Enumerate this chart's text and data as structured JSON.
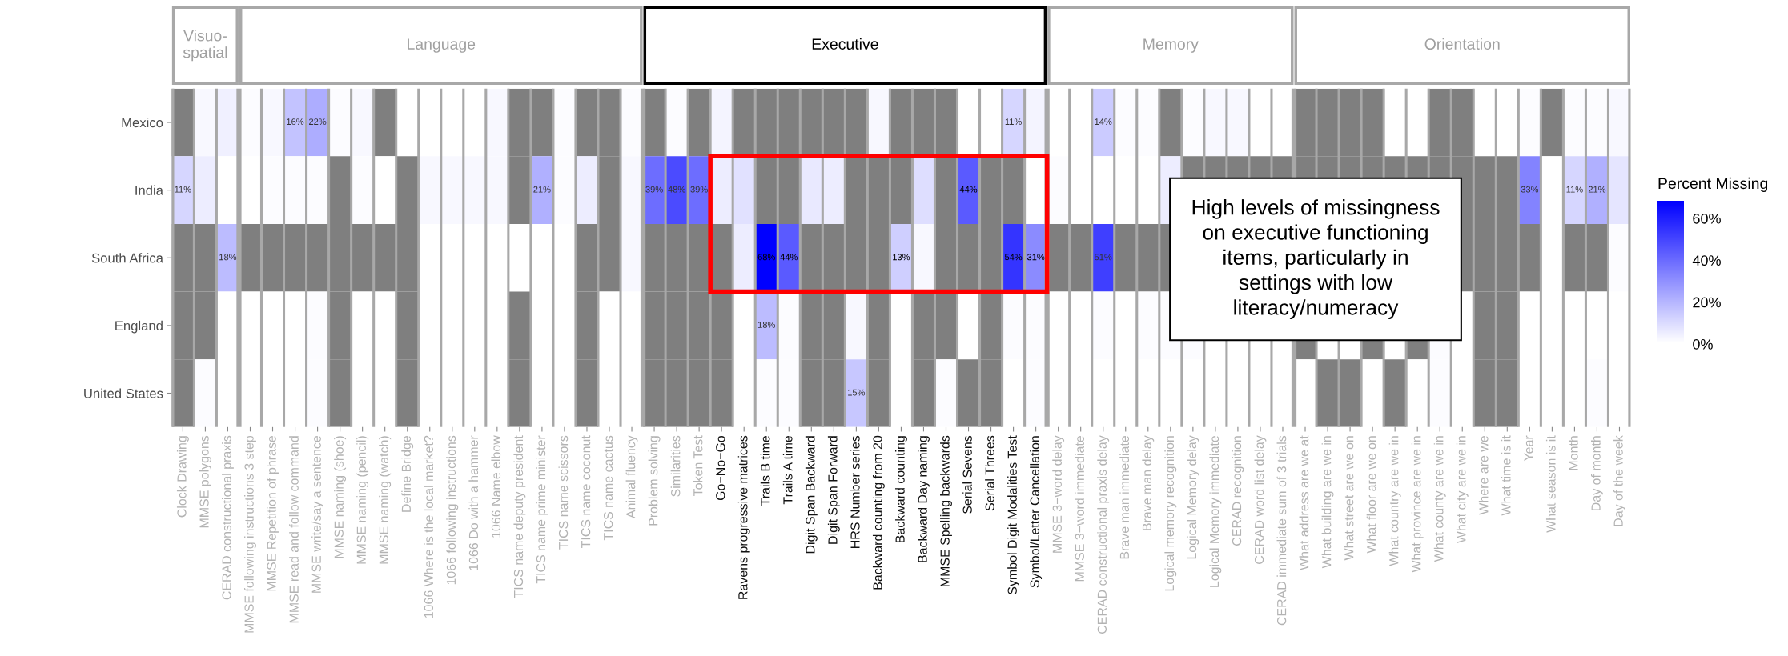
{
  "chart_data": {
    "type": "heatmap",
    "categories": [
      "Clock Drawing",
      "MMSE polygons",
      "CERAD constructional praxis",
      "MMSE following instructions 3 step",
      "MMSE Repetition of phrase",
      "MMSE read and follow command",
      "MMSE write/say a sentence",
      "MMSE naming (shoe)",
      "MMSE naming (pencil)",
      "MMSE naming (watch)",
      "Define Bridge",
      "1066 Where is the local market?",
      "1066 following instructions",
      "1066 Do with a hammer",
      "1066 Name elbow",
      "TICS name deputy president",
      "TICS name prime minister",
      "TICS name scissors",
      "TICS name coconut",
      "TICS name cactus",
      "Animal fluency",
      "Problem solving",
      "Similarities",
      "Token Test",
      "Go−No−Go",
      "Ravens progressive matrices",
      "Trails B time",
      "Trails A time",
      "Digit Span Backward",
      "Digit Span Forward",
      "HRS Number series",
      "Backward counting from 20",
      "Backward counting",
      "Backward Day naming",
      "MMSE Spelling backwards",
      "Serial Sevens",
      "Serial Threes",
      "Symbol Digit Modalities Test",
      "Symbol/Letter Cancellation",
      "MMSE 3−word delay",
      "MMSE 3−word immediate",
      "CERAD constructional praxis delay",
      "Brave man immediate",
      "Brave man delay",
      "Logical memory recognition",
      "Logical Memory delay",
      "Logical Memory immediate",
      "CERAD recognition",
      "CERAD word list delay",
      "CERAD immediate sum of 3 trials",
      "What address are we at",
      "What building are we in",
      "What street are we on",
      "What floor are we on",
      "What country are we in",
      "What province are we in",
      "What county are we in",
      "What city are we in",
      "Where are we",
      "What time is it",
      "Year",
      "What season is it",
      "Month",
      "Day of month",
      "Day of the week"
    ],
    "y_categories": [
      "Mexico",
      "India",
      "South Africa",
      "England",
      "United States"
    ],
    "cells": [
      [
        null,
        2,
        4,
        1,
        2,
        16,
        22,
        1,
        2,
        null,
        0,
        0,
        0,
        0,
        2,
        null,
        null,
        1,
        null,
        null,
        1,
        null,
        1,
        null,
        3,
        null,
        null,
        null,
        null,
        null,
        null,
        2,
        null,
        null,
        null,
        0,
        0,
        11,
        3,
        0,
        0,
        14,
        1,
        1,
        null,
        1,
        2,
        2,
        0,
        0,
        null,
        null,
        null,
        null,
        0,
        0,
        null,
        null,
        0,
        0,
        1,
        null,
        1,
        1,
        2
      ],
      [
        11,
        5,
        0,
        0,
        1,
        1,
        1,
        null,
        1,
        0,
        null,
        2,
        2,
        2,
        2,
        null,
        21,
        1,
        5,
        null,
        2,
        39,
        48,
        39,
        5,
        8,
        null,
        null,
        6,
        5,
        null,
        null,
        null,
        9,
        null,
        44,
        null,
        null,
        0,
        1,
        0,
        0,
        0,
        0,
        5,
        null,
        null,
        null,
        null,
        null,
        null,
        null,
        null,
        null,
        null,
        null,
        null,
        null,
        null,
        null,
        33,
        0,
        11,
        21,
        7
      ],
      [
        null,
        null,
        18,
        null,
        null,
        null,
        null,
        null,
        null,
        null,
        null,
        0,
        0,
        0,
        0,
        0,
        0,
        0,
        null,
        null,
        2,
        null,
        null,
        null,
        null,
        5,
        68,
        44,
        null,
        null,
        null,
        null,
        13,
        2,
        null,
        null,
        null,
        54,
        31,
        null,
        null,
        51,
        null,
        null,
        null,
        null,
        null,
        null,
        null,
        null,
        null,
        null,
        null,
        null,
        null,
        null,
        null,
        null,
        null,
        null,
        null,
        0,
        null,
        null,
        1
      ],
      [
        null,
        null,
        0,
        0,
        0,
        0,
        1,
        null,
        0,
        0,
        null,
        0,
        0,
        0,
        0,
        null,
        0,
        0,
        null,
        0,
        0,
        null,
        null,
        null,
        null,
        0,
        18,
        1,
        null,
        null,
        2,
        null,
        0,
        null,
        null,
        0,
        null,
        1,
        1,
        0,
        0,
        1,
        0,
        1,
        1,
        1,
        0,
        0,
        0,
        0,
        null,
        0,
        0,
        null,
        0,
        null,
        1,
        0,
        null,
        null,
        0,
        0,
        0,
        0,
        0
      ],
      [
        null,
        1,
        0,
        0,
        0,
        0,
        1,
        null,
        0,
        0,
        null,
        0,
        0,
        0,
        0,
        null,
        0,
        0,
        null,
        0,
        0,
        null,
        null,
        null,
        null,
        0,
        1,
        1,
        null,
        null,
        15,
        null,
        0,
        null,
        1,
        null,
        null,
        0,
        1,
        0,
        0,
        0,
        0,
        0,
        0,
        0,
        0,
        0,
        0,
        0,
        0,
        null,
        null,
        0,
        null,
        0,
        1,
        0,
        null,
        null,
        0,
        0,
        0,
        1,
        0
      ]
    ],
    "cell_labels": [
      [
        null,
        null,
        null,
        null,
        null,
        "16%",
        "22%",
        null,
        null,
        null,
        null,
        null,
        null,
        null,
        null,
        null,
        null,
        null,
        null,
        null,
        null,
        null,
        null,
        null,
        null,
        null,
        null,
        null,
        null,
        null,
        null,
        null,
        null,
        null,
        null,
        null,
        null,
        "11%",
        null,
        null,
        null,
        "14%",
        null,
        null,
        null,
        null,
        null,
        null,
        null,
        null,
        null,
        null,
        null,
        null,
        null,
        null,
        null,
        null,
        null,
        null,
        null,
        null,
        null,
        null,
        null
      ],
      [
        "11%",
        null,
        null,
        null,
        null,
        null,
        null,
        null,
        null,
        null,
        null,
        null,
        null,
        null,
        null,
        null,
        "21%",
        null,
        null,
        null,
        null,
        "39%",
        "48%",
        "39%",
        null,
        null,
        null,
        null,
        null,
        null,
        null,
        null,
        null,
        null,
        null,
        "44%",
        null,
        null,
        null,
        null,
        null,
        null,
        null,
        null,
        null,
        null,
        null,
        null,
        null,
        null,
        null,
        null,
        null,
        null,
        null,
        null,
        null,
        null,
        null,
        null,
        "33%",
        null,
        "11%",
        "21%",
        null
      ],
      [
        null,
        null,
        "18%",
        null,
        null,
        null,
        null,
        null,
        null,
        null,
        null,
        null,
        null,
        null,
        null,
        null,
        null,
        null,
        null,
        null,
        null,
        null,
        null,
        null,
        null,
        null,
        "68%",
        "44%",
        null,
        null,
        null,
        null,
        "13%",
        null,
        null,
        null,
        null,
        "54%",
        "31%",
        null,
        null,
        "51%",
        null,
        null,
        null,
        null,
        null,
        null,
        null,
        null,
        null,
        null,
        null,
        null,
        null,
        null,
        null,
        null,
        null,
        null,
        null,
        null,
        null,
        null,
        null
      ],
      [
        null,
        null,
        null,
        null,
        null,
        null,
        null,
        null,
        null,
        null,
        null,
        null,
        null,
        null,
        null,
        null,
        null,
        null,
        null,
        null,
        null,
        null,
        null,
        null,
        null,
        null,
        "18%",
        null,
        null,
        null,
        null,
        null,
        null,
        null,
        null,
        null,
        null,
        null,
        null,
        null,
        null,
        null,
        null,
        null,
        null,
        null,
        null,
        null,
        null,
        null,
        null,
        null,
        null,
        null,
        null,
        null,
        null,
        null,
        null,
        null,
        null,
        null,
        null,
        null,
        null
      ],
      [
        null,
        null,
        null,
        null,
        null,
        null,
        null,
        null,
        null,
        null,
        null,
        null,
        null,
        null,
        null,
        null,
        null,
        null,
        null,
        null,
        null,
        null,
        null,
        null,
        null,
        null,
        null,
        null,
        null,
        null,
        "15%",
        null,
        null,
        null,
        null,
        null,
        null,
        null,
        null,
        null,
        null,
        null,
        null,
        null,
        null,
        null,
        null,
        null,
        null,
        null,
        null,
        null,
        null,
        null,
        null,
        null,
        null,
        null,
        null,
        null,
        null,
        null,
        null,
        null,
        null
      ]
    ],
    "annotations": [
      "Visuo-\nspatial",
      "Language",
      "Executive",
      "Memory",
      "Orientation",
      "High levels of missingness on executive functioning items, particularly in settings with low literacy/numeracy"
    ],
    "clim": [
      0,
      68
    ],
    "clabel": "Percent Missing",
    "cticks": [
      {
        "value": 0,
        "label": "0%"
      },
      {
        "value": 20,
        "label": "20%"
      },
      {
        "value": 40,
        "label": "40%"
      },
      {
        "value": 60,
        "label": "60%"
      }
    ]
  }
}
